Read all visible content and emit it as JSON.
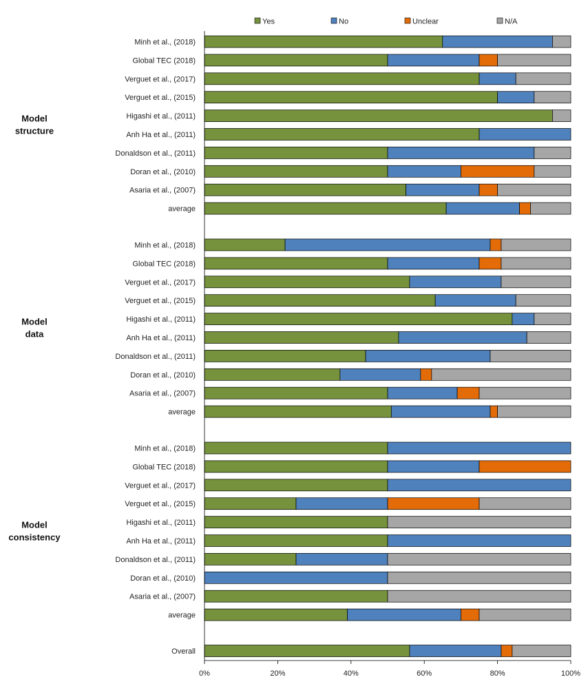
{
  "chart_data": {
    "type": "bar",
    "orientation": "horizontal",
    "stacked": "percent",
    "series_names": [
      "Yes",
      "No",
      "Unclear",
      "N/A"
    ],
    "colors": {
      "Yes": "#76923c",
      "No": "#4f81bd",
      "Unclear": "#e36c09",
      "N/A": "#a6a6a6"
    },
    "legend_position": "top",
    "x_ticks": [
      "0%",
      "20%",
      "40%",
      "60%",
      "80%",
      "100%"
    ],
    "xlim": [
      0,
      100
    ],
    "gridlines": false,
    "groups": [
      {
        "label_line1": "Model",
        "label_line2": "structure",
        "rows": [
          {
            "label": "Minh et al., (2018)",
            "values": [
              65,
              30,
              0,
              5
            ]
          },
          {
            "label": "Global TEC (2018)",
            "values": [
              50,
              25,
              5,
              20
            ]
          },
          {
            "label": "Verguet et al., (2017)",
            "values": [
              75,
              10,
              0,
              15
            ]
          },
          {
            "label": "Verguet et al., (2015)",
            "values": [
              80,
              10,
              0,
              10
            ]
          },
          {
            "label": "Higashi et  al., (2011)",
            "values": [
              95,
              0,
              0,
              5
            ]
          },
          {
            "label": "Anh Ha et al., (2011)",
            "values": [
              75,
              25,
              0,
              0
            ]
          },
          {
            "label": "Donaldson et al., (2011)",
            "values": [
              50,
              40,
              0,
              10
            ]
          },
          {
            "label": "Doran et al., (2010)",
            "values": [
              50,
              20,
              20,
              10
            ]
          },
          {
            "label": "Asaria et al., (2007)",
            "values": [
              55,
              20,
              5,
              20
            ]
          },
          {
            "label": "average",
            "values": [
              66,
              20,
              3,
              11
            ]
          }
        ]
      },
      {
        "label_line1": "Model",
        "label_line2": "data",
        "rows": [
          {
            "label": "Minh et al., (2018)",
            "values": [
              22,
              56,
              3,
              19
            ]
          },
          {
            "label": "Global TEC (2018)",
            "values": [
              50,
              25,
              6,
              19
            ]
          },
          {
            "label": "Verguet et al., (2017)",
            "values": [
              56,
              25,
              0,
              19
            ]
          },
          {
            "label": "Verguet et al., (2015)",
            "values": [
              63,
              22,
              0,
              15
            ]
          },
          {
            "label": "Higashi et  al., (2011)",
            "values": [
              84,
              6,
              0,
              10
            ]
          },
          {
            "label": "Anh Ha et al., (2011)",
            "values": [
              53,
              35,
              0,
              12
            ]
          },
          {
            "label": "Donaldson et al., (2011)",
            "values": [
              44,
              34,
              0,
              22
            ]
          },
          {
            "label": "Doran et al., (2010)",
            "values": [
              37,
              22,
              3,
              38
            ]
          },
          {
            "label": "Asaria et al., (2007)",
            "values": [
              50,
              19,
              6,
              25
            ]
          },
          {
            "label": "average",
            "values": [
              51,
              27,
              2,
              20
            ]
          }
        ]
      },
      {
        "label_line1": "Model",
        "label_line2": "consistency",
        "rows": [
          {
            "label": "Minh et al., (2018)",
            "values": [
              50,
              50,
              0,
              0
            ]
          },
          {
            "label": "Global TEC (2018)",
            "values": [
              50,
              25,
              25,
              0
            ]
          },
          {
            "label": "Verguet et al., (2017)",
            "values": [
              50,
              50,
              0,
              0
            ]
          },
          {
            "label": "Verguet et al., (2015)",
            "values": [
              25,
              25,
              25,
              25
            ]
          },
          {
            "label": "Higashi et  al., (2011)",
            "values": [
              50,
              0,
              0,
              50
            ]
          },
          {
            "label": "Anh Ha et al., (2011)",
            "values": [
              50,
              50,
              0,
              0
            ]
          },
          {
            "label": "Donaldson et al., (2011)",
            "values": [
              25,
              25,
              0,
              50
            ]
          },
          {
            "label": "Doran et al., (2010)",
            "values": [
              0,
              50,
              0,
              50
            ]
          },
          {
            "label": "Asaria et al., (2007)",
            "values": [
              50,
              0,
              0,
              50
            ]
          },
          {
            "label": "average",
            "values": [
              39,
              31,
              5,
              25
            ]
          }
        ]
      },
      {
        "label_line1": "",
        "label_line2": "",
        "rows": [
          {
            "label": "Overall",
            "values": [
              56,
              25,
              3,
              16
            ]
          }
        ]
      }
    ]
  }
}
